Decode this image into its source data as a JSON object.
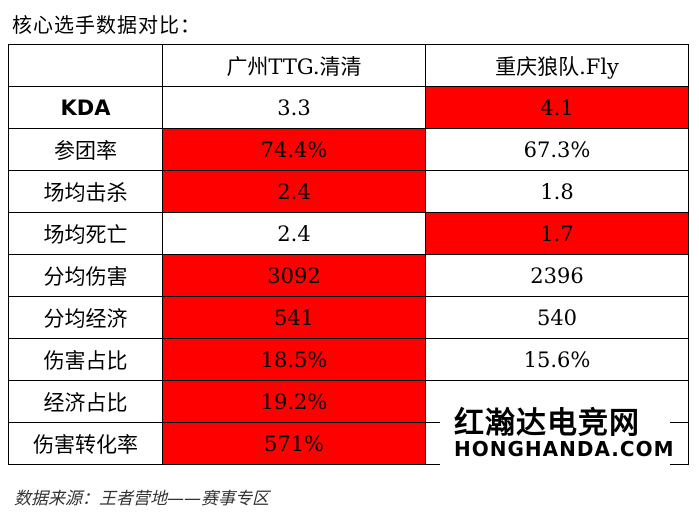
{
  "title": "核心选手数据对比：",
  "table": {
    "headers": [
      "",
      "广州TTG.清清",
      "重庆狼队.Fly"
    ],
    "rows": [
      {
        "label": "KDA",
        "bold": true,
        "left": "3.3",
        "right": "4.1",
        "highlight": "right"
      },
      {
        "label": "参团率",
        "left": "74.4%",
        "right": "67.3%",
        "highlight": "left"
      },
      {
        "label": "场均击杀",
        "left": "2.4",
        "right": "1.8",
        "highlight": "left"
      },
      {
        "label": "场均死亡",
        "left": "2.4",
        "right": "1.7",
        "highlight": "right"
      },
      {
        "label": "分均伤害",
        "left": "3092",
        "right": "2396",
        "highlight": "left"
      },
      {
        "label": "分均经济",
        "left": "541",
        "right": "540",
        "highlight": "left"
      },
      {
        "label": "伤害占比",
        "left": "18.5%",
        "right": "15.6%",
        "highlight": "left"
      },
      {
        "label": "经济占比",
        "left": "19.2%",
        "right": "",
        "highlight": "left"
      },
      {
        "label": "伤害转化率",
        "left": "571%",
        "right": "",
        "highlight": "left"
      }
    ]
  },
  "source": "数据来源：王者营地——赛事专区",
  "watermark": {
    "cn": "红瀚达电竞网",
    "en": "HONGHANDA.COM"
  },
  "colors": {
    "highlight": "#ff0000"
  }
}
